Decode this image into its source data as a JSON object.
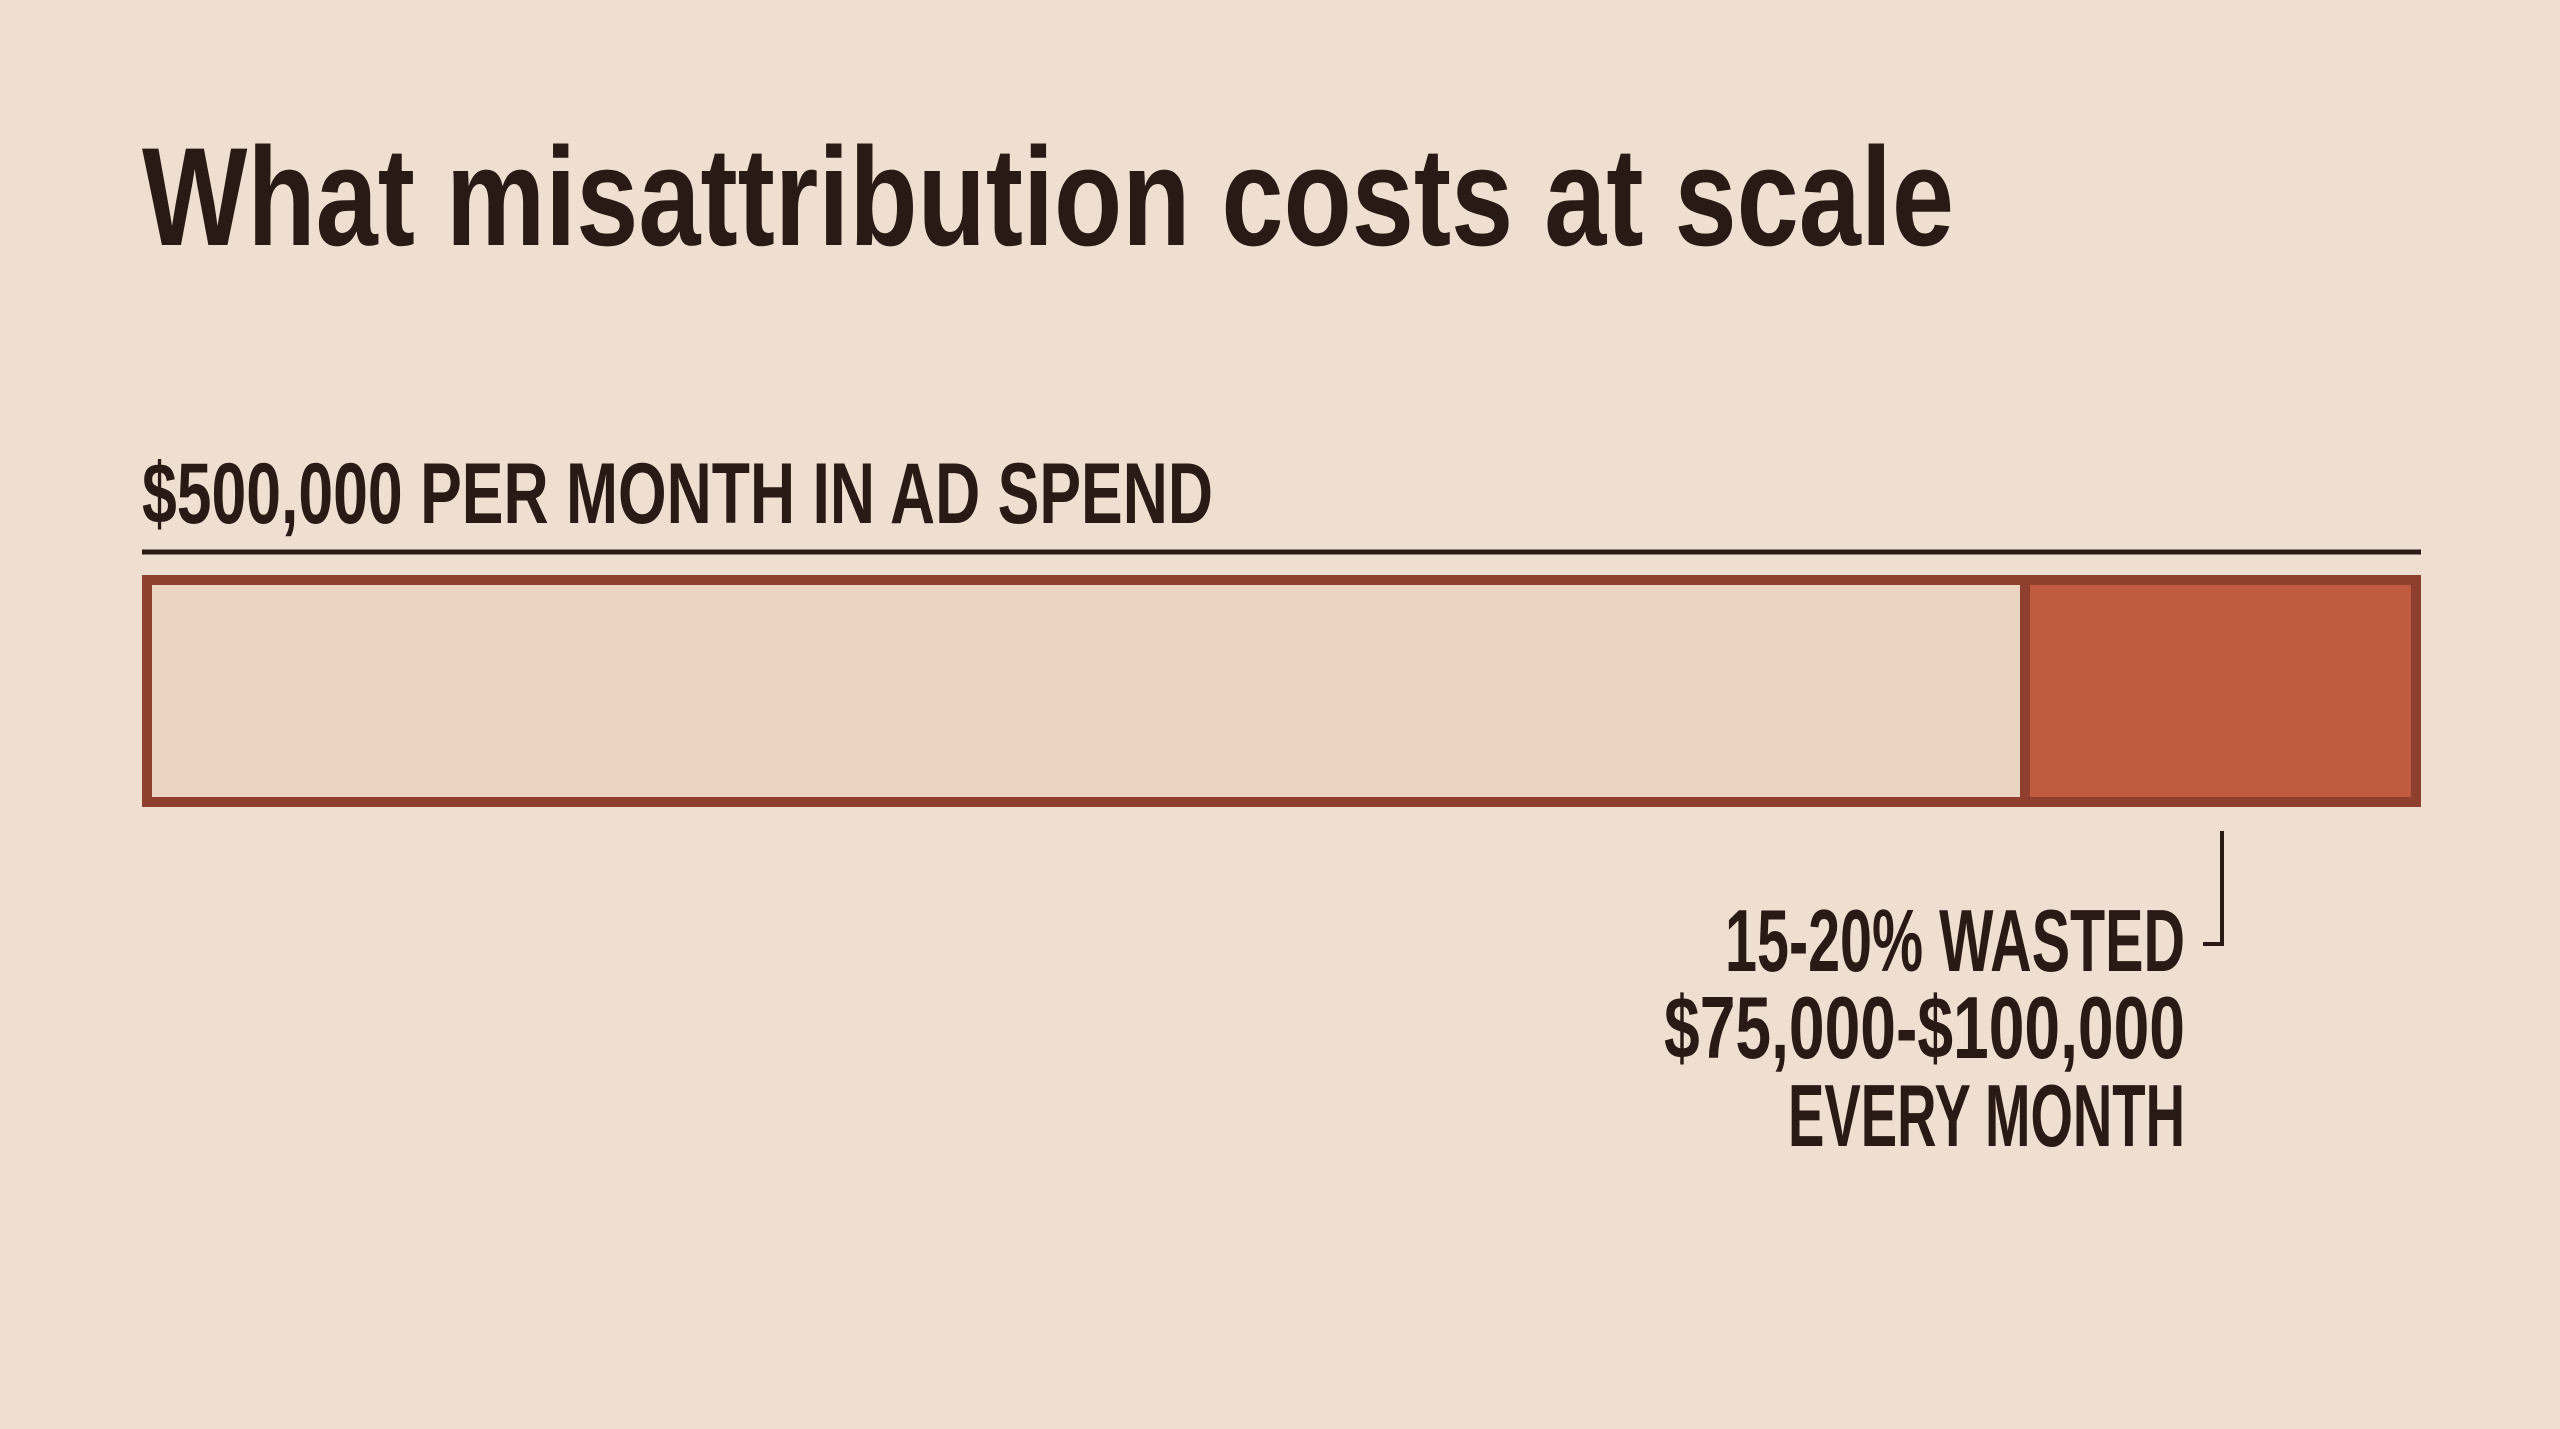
{
  "title": "What misattribution costs at scale",
  "bar_label": "$500,000 PER MONTH IN AD SPEND",
  "annotation": {
    "lines": [
      "15-20% WASTED",
      "$75,000-$100,000",
      "EVERY MONTH"
    ]
  }
}
